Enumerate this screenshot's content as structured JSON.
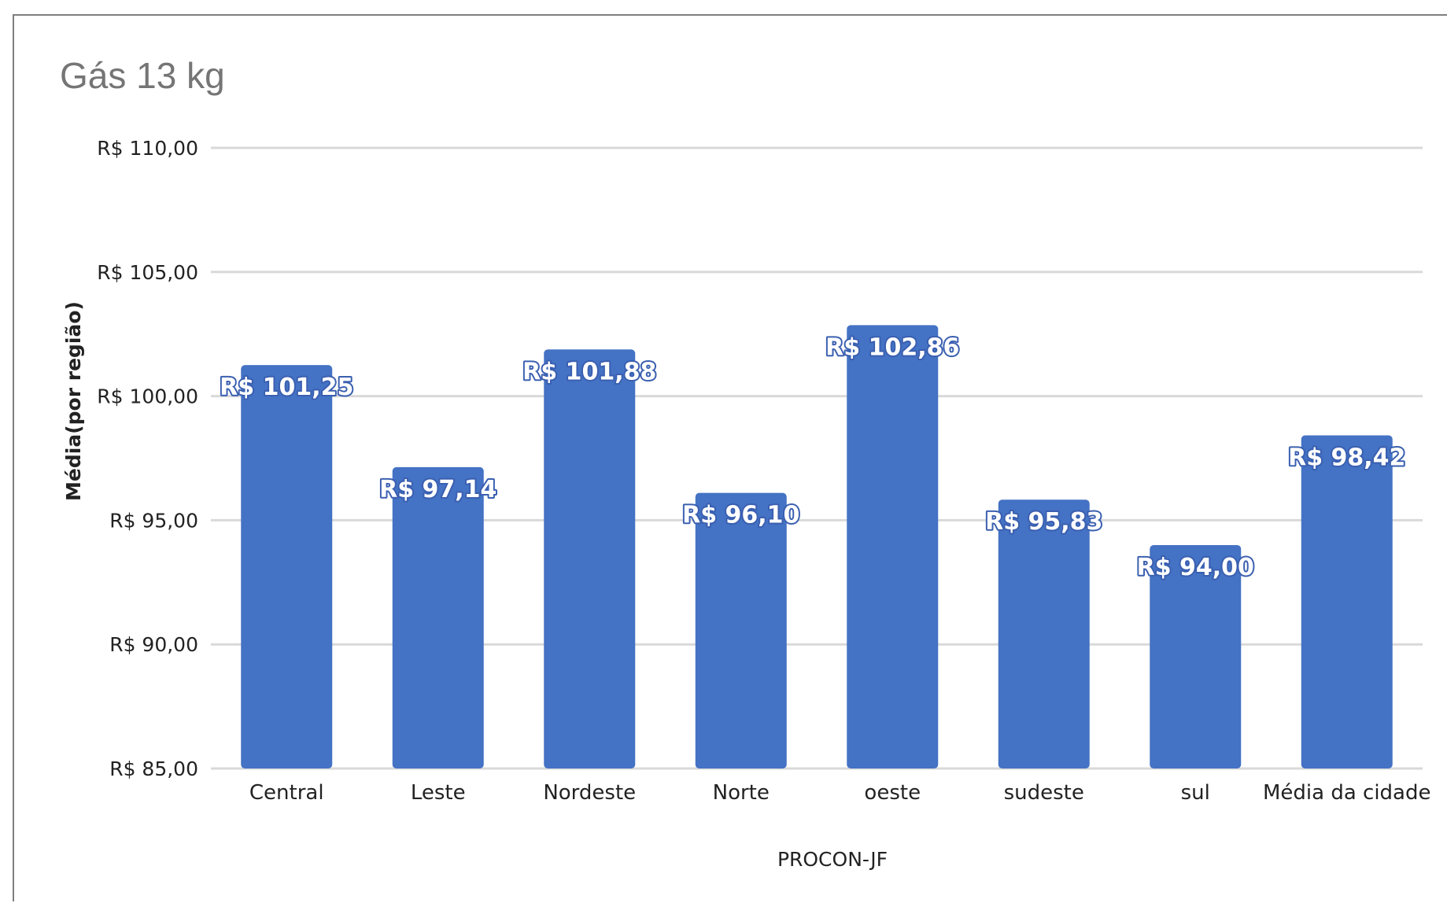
{
  "chart_data": {
    "type": "bar",
    "title": "Gás 13 kg",
    "xlabel": "PROCON-JF",
    "ylabel": "Média(por região)",
    "categories": [
      "Central",
      "Leste",
      "Nordeste",
      "Norte",
      "oeste",
      "sudeste",
      "sul",
      "Média da cidade"
    ],
    "values": [
      101.25,
      97.14,
      101.88,
      96.1,
      102.86,
      95.83,
      94.0,
      98.42
    ],
    "data_labels": [
      "R$ 101,25",
      "R$ 97,14",
      "R$ 101,88",
      "R$ 96,10",
      "R$ 102,86",
      "R$ 95,83",
      "R$ 94,00",
      "R$ 98,42"
    ],
    "ylim": [
      85,
      110
    ],
    "yticks": [
      85,
      90,
      95,
      100,
      105,
      110
    ],
    "ytick_labels": [
      "R$ 85,00",
      "R$ 90,00",
      "R$ 95,00",
      "R$ 100,00",
      "R$ 105,00",
      "R$ 110,00"
    ],
    "grid": true,
    "legend": "none",
    "bar_color": "#4472c4",
    "gridline_color": "#d9d9d9",
    "title_color": "#757575"
  }
}
